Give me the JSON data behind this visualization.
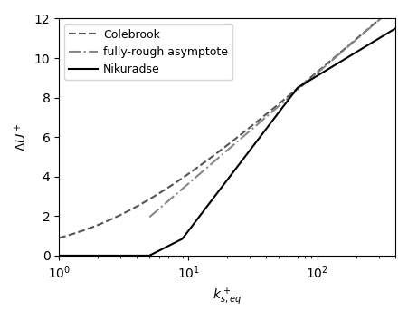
{
  "xlabel": "$k^+_{s,eq}$",
  "ylabel": "$\\Delta U^+$",
  "xlim": [
    1,
    400
  ],
  "ylim": [
    0,
    12
  ],
  "yticks": [
    0,
    2,
    4,
    6,
    8,
    10,
    12
  ],
  "kappa": 0.41,
  "k0": 2.25,
  "legend_labels": [
    "Nikuradse",
    "Colebrook",
    "fully-rough asymptote"
  ],
  "legend_linestyles": [
    "solid",
    "dashed",
    "dashdot"
  ],
  "line_colors": [
    "#000000",
    "#555555",
    "#888888"
  ],
  "nik_x": [
    1.0,
    5.0,
    9.0,
    70.0,
    400.0
  ],
  "nik_y": [
    0.0,
    0.0,
    0.85,
    8.5,
    11.5
  ],
  "fr_start": 5.0,
  "fontsize": 10
}
